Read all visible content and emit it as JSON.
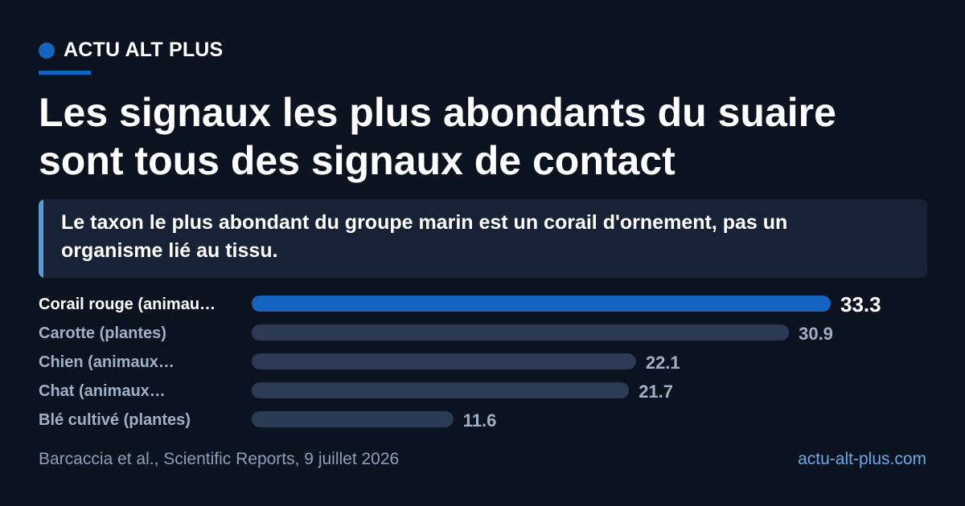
{
  "brand": {
    "name": "ACTU ALT PLUS",
    "accent_color": "#1565c0"
  },
  "headline": "Les signaux les plus abondants du suaire sont tous des signaux de contact",
  "callout": "Le taxon le plus abondant du groupe marin est un corail d'ornement, pas un organisme lié au tissu.",
  "chart_data": {
    "type": "bar",
    "orientation": "horizontal",
    "categories": [
      "Corail rouge (animau…",
      "Carotte (plantes)",
      "Chien (animaux…",
      "Chat (animaux…",
      "Blé cultivé (plantes)"
    ],
    "values": [
      33.3,
      30.9,
      22.1,
      21.7,
      11.6
    ],
    "value_labels": [
      "33.3",
      "30.9",
      "22.1",
      "21.7",
      "11.6"
    ],
    "highlight_index": 0,
    "xlim": [
      0,
      33.3
    ],
    "colors": {
      "highlight_bar": "#1565c0",
      "bar": "#2c3b54",
      "highlight_label": "#ffffff",
      "label": "#9fb1c7"
    },
    "grid": false,
    "axes_visible": false
  },
  "footer": {
    "source": "Barcaccia et al., Scientific Reports, 9 juillet 2026",
    "site": "actu-alt-plus.com"
  }
}
